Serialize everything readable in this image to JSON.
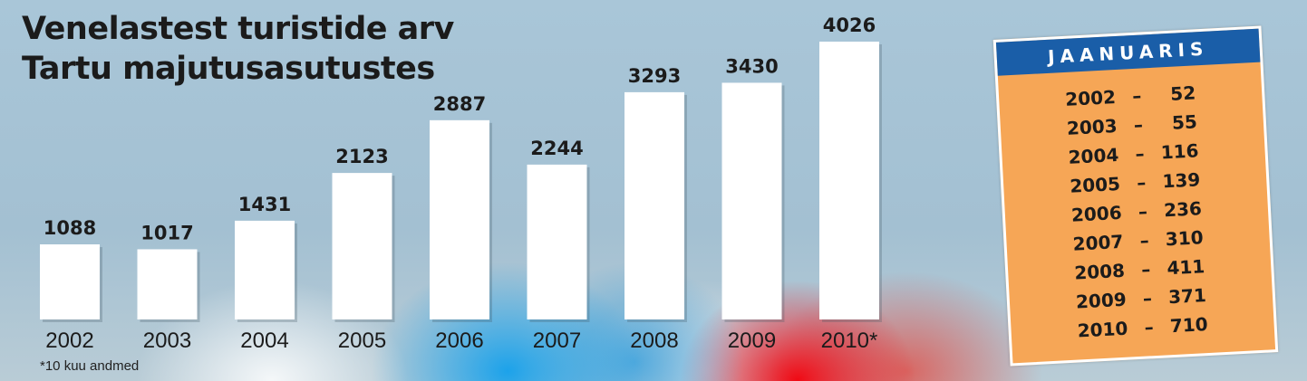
{
  "title_line1": "Venelastest turistide arv",
  "title_line2": "Tartu majutusasutustes",
  "footnote": "*10 kuu andmed",
  "chart_data": {
    "type": "bar",
    "title": "Venelastest turistide arv Tartu majutusasutustes",
    "categories": [
      "2002",
      "2003",
      "2004",
      "2005",
      "2006",
      "2007",
      "2008",
      "2009",
      "2010*"
    ],
    "values": [
      1088,
      1017,
      1431,
      2123,
      2887,
      2244,
      3293,
      3430,
      4026
    ],
    "data_labels": [
      "1088",
      "1017",
      "1431",
      "2123",
      "2887",
      "2244",
      "3293",
      "3430",
      "4026"
    ],
    "xlabel": "",
    "ylabel": "",
    "grid": false,
    "bar_color": "#ffffff"
  },
  "january": {
    "header": "JAANUARIS",
    "rows": [
      {
        "year": "2002",
        "dash": "–",
        "value": "52"
      },
      {
        "year": "2003",
        "dash": "–",
        "value": "55"
      },
      {
        "year": "2004",
        "dash": "–",
        "value": "116"
      },
      {
        "year": "2005",
        "dash": "–",
        "value": "139"
      },
      {
        "year": "2006",
        "dash": "–",
        "value": "236"
      },
      {
        "year": "2007",
        "dash": "–",
        "value": "310"
      },
      {
        "year": "2008",
        "dash": "–",
        "value": "411"
      },
      {
        "year": "2009",
        "dash": "–",
        "value": "371"
      },
      {
        "year": "2010",
        "dash": "–",
        "value": "710"
      }
    ],
    "box_color": "#f6a656",
    "header_color": "#1a5ea8"
  }
}
